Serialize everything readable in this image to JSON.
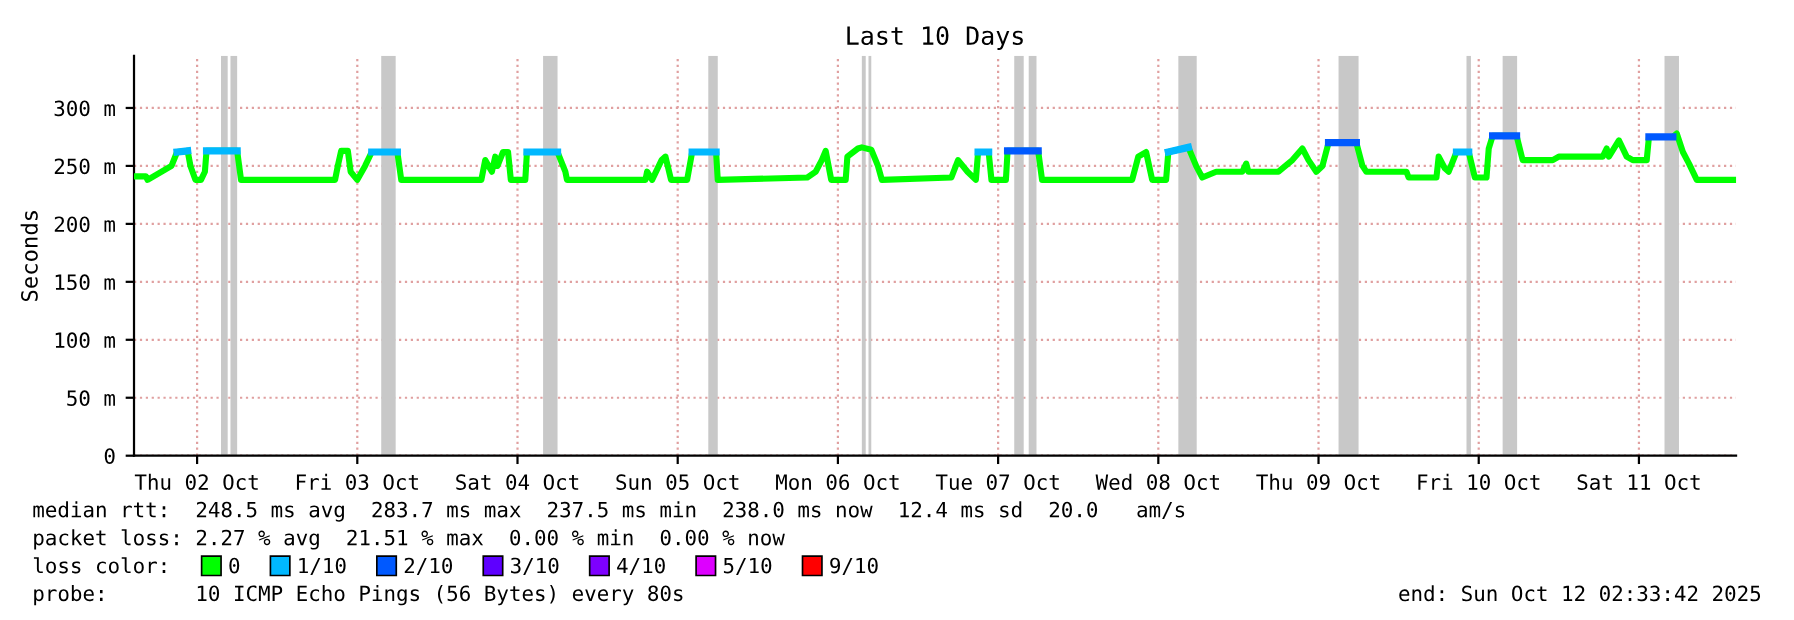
{
  "chart_data": {
    "type": "line",
    "title": "Last 10 Days",
    "ylabel": "Seconds",
    "x": [
      "2025-10-02T02:33",
      "2025-10-02T04:20",
      "2025-10-02T04:35",
      "2025-10-02T08:10",
      "2025-10-02T09:00",
      "2025-10-02T10:35",
      "2025-10-02T11:00",
      "2025-10-02T11:45",
      "2025-10-02T12:35",
      "2025-10-02T13:10",
      "2025-10-02T13:25",
      "2025-10-02T18:00",
      "2025-10-02T18:35",
      "2025-10-03T08:40",
      "2025-10-03T09:05",
      "2025-10-03T09:35",
      "2025-10-03T10:35",
      "2025-10-03T11:00",
      "2025-10-03T12:00",
      "2025-10-03T13:10",
      "2025-10-03T14:10",
      "2025-10-03T18:00",
      "2025-10-03T18:35",
      "2025-10-04T06:35",
      "2025-10-04T07:10",
      "2025-10-04T08:10",
      "2025-10-04T08:40",
      "2025-10-04T09:00",
      "2025-10-04T09:50",
      "2025-10-04T10:35",
      "2025-10-04T11:00",
      "2025-10-04T13:10",
      "2025-10-04T13:25",
      "2025-10-04T18:00",
      "2025-10-04T19:10",
      "2025-10-04T19:25",
      "2025-10-05T07:10",
      "2025-10-05T07:25",
      "2025-10-05T08:10",
      "2025-10-05T09:35",
      "2025-10-05T10:10",
      "2025-10-05T11:00",
      "2025-10-05T13:25",
      "2025-10-05T14:10",
      "2025-10-05T17:45",
      "2025-10-05T18:00",
      "2025-10-06T07:25",
      "2025-10-06T08:40",
      "2025-10-06T09:35",
      "2025-10-06T10:10",
      "2025-10-06T11:00",
      "2025-10-06T13:10",
      "2025-10-06T13:25",
      "2025-10-06T15:00",
      "2025-10-06T15:35",
      "2025-10-06T17:00",
      "2025-10-06T18:00",
      "2025-10-06T18:35",
      "2025-10-07T05:00",
      "2025-10-07T06:00",
      "2025-10-07T07:25",
      "2025-10-07T08:40",
      "2025-10-07T09:00",
      "2025-10-07T10:35",
      "2025-10-07T11:00",
      "2025-10-07T13:10",
      "2025-10-07T13:25",
      "2025-10-07T18:00",
      "2025-10-07T18:35",
      "2025-10-08T08:05",
      "2025-10-08T09:00",
      "2025-10-08T10:10",
      "2025-10-08T11:05",
      "2025-10-08T13:10",
      "2025-10-08T13:30",
      "2025-10-08T16:30",
      "2025-10-08T17:40",
      "2025-10-08T18:35",
      "2025-10-08T20:40",
      "2025-10-09T00:35",
      "2025-10-09T01:10",
      "2025-10-09T01:30",
      "2025-10-09T06:00",
      "2025-10-09T08:05",
      "2025-10-09T09:35",
      "2025-10-09T10:30",
      "2025-10-09T11:40",
      "2025-10-09T12:35",
      "2025-10-09T13:30",
      "2025-10-09T17:40",
      "2025-10-09T18:35",
      "2025-10-09T19:10",
      "2025-10-10T01:10",
      "2025-10-10T01:30",
      "2025-10-10T05:40",
      "2025-10-10T06:00",
      "2025-10-10T06:55",
      "2025-10-10T07:30",
      "2025-10-10T08:40",
      "2025-10-10T10:30",
      "2025-10-10T11:25",
      "2025-10-10T13:10",
      "2025-10-10T13:30",
      "2025-10-10T14:05",
      "2025-10-10T17:40",
      "2025-10-10T18:35",
      "2025-10-10T23:05",
      "2025-10-11T00:00",
      "2025-10-11T06:35",
      "2025-10-11T07:10",
      "2025-10-11T07:30",
      "2025-10-11T09:00",
      "2025-10-11T10:10",
      "2025-10-11T11:05",
      "2025-10-11T13:10",
      "2025-10-11T13:30",
      "2025-10-11T17:05",
      "2025-10-11T17:40",
      "2025-10-11T18:35",
      "2025-10-11T19:30",
      "2025-10-11T20:40",
      "2025-10-12T02:25"
    ],
    "series": [
      {
        "name": "0",
        "color": "#00ff00",
        "values": [
          241,
          241,
          238,
          250,
          262,
          263,
          250,
          238,
          238,
          245,
          263,
          263,
          238,
          238,
          250,
          263,
          263,
          245,
          238,
          250,
          262,
          262,
          238,
          238,
          255,
          245,
          258,
          250,
          262,
          262,
          238,
          238,
          262,
          262,
          245,
          238,
          238,
          245,
          238,
          255,
          258,
          238,
          238,
          262,
          262,
          238,
          240,
          245,
          255,
          263,
          238,
          238,
          258,
          265,
          266,
          264,
          250,
          238,
          240,
          255,
          245,
          238,
          262,
          262,
          238,
          238,
          263,
          263,
          238,
          238,
          258,
          262,
          238,
          238,
          262,
          266,
          250,
          240,
          245,
          245,
          252,
          245,
          245,
          255,
          265,
          255,
          245,
          250,
          270,
          270,
          250,
          245,
          245,
          240,
          240,
          258,
          248,
          245,
          262,
          262,
          240,
          240,
          265,
          276,
          276,
          255,
          255,
          258,
          258,
          265,
          258,
          272,
          258,
          255,
          255,
          275,
          275,
          278,
          262,
          252,
          238,
          238
        ]
      },
      {
        "name": "1/10",
        "color": "#00b8ff",
        "x": [
          "2025-10-02T09:00",
          "2025-10-02T10:35",
          "2025-10-02T12:00",
          "2025-10-02T13:25",
          "2025-10-02T18:00",
          "2025-10-03T03:00",
          "2025-10-03T14:10",
          "2025-10-03T18:00",
          "2025-10-04T03:00",
          "2025-10-04T13:25",
          "2025-10-04T18:00",
          "2025-10-05T03:00",
          "2025-10-05T14:10",
          "2025-10-05T17:45",
          "2025-10-06T12:00",
          "2025-10-07T09:00",
          "2025-10-07T10:35",
          "2025-10-08T00:00",
          "2025-10-08T13:30",
          "2025-10-08T16:30",
          "2025-10-09T12:00",
          "2025-10-10T08:40",
          "2025-10-10T10:30"
        ],
        "values": [
          262,
          263,
          null,
          263,
          263,
          null,
          262,
          262,
          null,
          262,
          262,
          null,
          262,
          262,
          null,
          262,
          262,
          null,
          262,
          266,
          null,
          262,
          262
        ]
      },
      {
        "name": "2/10",
        "color": "#0059ff",
        "x": [
          "2025-10-07T13:25",
          "2025-10-07T18:00",
          "2025-10-08T12:00",
          "2025-10-09T13:30",
          "2025-10-09T17:40",
          "2025-10-10T03:00",
          "2025-10-10T14:05",
          "2025-10-10T17:40",
          "2025-10-11T03:00",
          "2025-10-11T13:30",
          "2025-10-11T17:05"
        ],
        "values": [
          263,
          263,
          null,
          270,
          270,
          null,
          276,
          276,
          null,
          275,
          275
        ]
      },
      {
        "name": "3/10",
        "color": "#5e00ff",
        "values": [
          null,
          null,
          null,
          null,
          null,
          null,
          null,
          null,
          null,
          null,
          null,
          null,
          null,
          null,
          null,
          null,
          null,
          null,
          null,
          null,
          null,
          null,
          null,
          null,
          null,
          null,
          null,
          null,
          null,
          null,
          null,
          null,
          null,
          null,
          null,
          null,
          null,
          null,
          null,
          null,
          null,
          null,
          null,
          null,
          null,
          null,
          null,
          null,
          null,
          null,
          null,
          null,
          null,
          null,
          null,
          null,
          null,
          null,
          null,
          null,
          null,
          null,
          null,
          null,
          null,
          null,
          null,
          null,
          null,
          null,
          null,
          null,
          null,
          null,
          null,
          null,
          null,
          null,
          null,
          null,
          null,
          null,
          null,
          null,
          null,
          null,
          null,
          null,
          null,
          null,
          null,
          null,
          null,
          null,
          null,
          null,
          null,
          null,
          null,
          null,
          null,
          null,
          null,
          null,
          null,
          null,
          null,
          null,
          null,
          null,
          null,
          null,
          null,
          null,
          null,
          null,
          null,
          null,
          null,
          null,
          null,
          null
        ]
      },
      {
        "name": "4/10",
        "color": "#7e00ff",
        "values": [
          null,
          null,
          null,
          null,
          null,
          null,
          null,
          null,
          null,
          null,
          null,
          null,
          null,
          null,
          null,
          null,
          null,
          null,
          null,
          null,
          null,
          null,
          null,
          null,
          null,
          null,
          null,
          null,
          null,
          null,
          null,
          null,
          null,
          null,
          null,
          null,
          null,
          null,
          null,
          null,
          null,
          null,
          null,
          null,
          null,
          null,
          null,
          null,
          null,
          null,
          null,
          null,
          null,
          null,
          null,
          null,
          null,
          null,
          null,
          null,
          null,
          null,
          null,
          null,
          null,
          null,
          null,
          null,
          null,
          null,
          null,
          null,
          null,
          null,
          null,
          null,
          null,
          null,
          null,
          null,
          null,
          null,
          null,
          null,
          null,
          null,
          null,
          null,
          null,
          null,
          null,
          null,
          null,
          null,
          null,
          null,
          null,
          null,
          null,
          null,
          null,
          null,
          null,
          null,
          null,
          null,
          null,
          null,
          null,
          null,
          null,
          null,
          null,
          null,
          null,
          null,
          null,
          null,
          null,
          null,
          null,
          null
        ]
      },
      {
        "name": "5/10",
        "color": "#dd00ff",
        "values": [
          null,
          null,
          null,
          null,
          null,
          null,
          null,
          null,
          null,
          null,
          null,
          null,
          null,
          null,
          null,
          null,
          null,
          null,
          null,
          null,
          null,
          null,
          null,
          null,
          null,
          null,
          null,
          null,
          null,
          null,
          null,
          null,
          null,
          null,
          null,
          null,
          null,
          null,
          null,
          null,
          null,
          null,
          null,
          null,
          null,
          null,
          null,
          null,
          null,
          null,
          null,
          null,
          null,
          null,
          null,
          null,
          null,
          null,
          null,
          null,
          null,
          null,
          null,
          null,
          null,
          null,
          null,
          null,
          null,
          null,
          null,
          null,
          null,
          null,
          null,
          null,
          null,
          null,
          null,
          null,
          null,
          null,
          null,
          null,
          null,
          null,
          null,
          null,
          null,
          null,
          null,
          null,
          null,
          null,
          null,
          null,
          null,
          null,
          null,
          null,
          null,
          null,
          null,
          null,
          null,
          null,
          null,
          null,
          null,
          null,
          null,
          null,
          null,
          null,
          null,
          null,
          null,
          null,
          null,
          null,
          null,
          null
        ]
      },
      {
        "name": "9/10",
        "color": "#ff0000",
        "values": [
          null,
          null,
          null,
          null,
          null,
          null,
          null,
          null,
          null,
          null,
          null,
          null,
          null,
          null,
          null,
          null,
          null,
          null,
          null,
          null,
          null,
          null,
          null,
          null,
          null,
          null,
          null,
          null,
          null,
          null,
          null,
          null,
          null,
          null,
          null,
          null,
          null,
          null,
          null,
          null,
          null,
          null,
          null,
          null,
          null,
          null,
          null,
          null,
          null,
          null,
          null,
          null,
          null,
          null,
          null,
          null,
          null,
          null,
          null,
          null,
          null,
          null,
          null,
          null,
          null,
          null,
          null,
          null,
          null,
          null,
          null,
          null,
          null,
          null,
          null,
          null,
          null,
          null,
          null,
          null,
          null,
          null,
          null,
          null,
          null,
          null,
          null,
          null,
          null,
          null,
          null,
          null,
          null,
          null,
          null,
          null,
          null,
          null,
          null,
          null,
          null,
          null,
          null,
          null,
          null,
          null,
          null,
          null,
          null,
          null,
          null,
          null,
          null,
          null,
          null,
          null,
          null,
          null,
          null,
          null,
          null,
          null
        ]
      }
    ],
    "bands": [
      {
        "axis": "x",
        "from": "2025-10-02T15:35",
        "to": "2025-10-02T16:35",
        "color": "#c8c8c8"
      },
      {
        "axis": "x",
        "from": "2025-10-02T17:00",
        "to": "2025-10-02T18:00",
        "color": "#c8c8c8"
      },
      {
        "axis": "x",
        "from": "2025-10-03T15:35",
        "to": "2025-10-03T17:45",
        "color": "#c8c8c8"
      },
      {
        "axis": "x",
        "from": "2025-10-04T15:50",
        "to": "2025-10-04T18:00",
        "color": "#c8c8c8"
      },
      {
        "axis": "x",
        "from": "2025-10-05T16:35",
        "to": "2025-10-05T18:00",
        "color": "#c8c8c8"
      },
      {
        "axis": "x",
        "from": "2025-10-06T15:35",
        "to": "2025-10-06T16:10",
        "color": "#c8c8c8"
      },
      {
        "axis": "x",
        "from": "2025-10-06T16:35",
        "to": "2025-10-06T17:00",
        "color": "#c8c8c8"
      },
      {
        "axis": "x",
        "from": "2025-10-07T14:25",
        "to": "2025-10-07T15:50",
        "color": "#c8c8c8"
      },
      {
        "axis": "x",
        "from": "2025-10-07T16:35",
        "to": "2025-10-07T17:45",
        "color": "#c8c8c8"
      },
      {
        "axis": "x",
        "from": "2025-10-08T15:00",
        "to": "2025-10-08T17:45",
        "color": "#c8c8c8"
      },
      {
        "axis": "x",
        "from": "2025-10-09T15:00",
        "to": "2025-10-09T18:00",
        "color": "#c8c8c8"
      },
      {
        "axis": "x",
        "from": "2025-10-10T10:10",
        "to": "2025-10-10T10:50",
        "color": "#c8c8c8"
      },
      {
        "axis": "x",
        "from": "2025-10-10T15:35",
        "to": "2025-10-10T17:45",
        "color": "#c8c8c8"
      },
      {
        "axis": "x",
        "from": "2025-10-11T15:50",
        "to": "2025-10-11T18:00",
        "color": "#c8c8c8"
      }
    ],
    "xlim": [
      "2025-10-02T02:33",
      "2025-10-12T02:33"
    ],
    "xticks": [
      {
        "value": "2025-10-02T12:00",
        "label": "Thu 02 Oct"
      },
      {
        "value": "2025-10-03T12:00",
        "label": "Fri 03 Oct"
      },
      {
        "value": "2025-10-04T12:00",
        "label": "Sat 04 Oct"
      },
      {
        "value": "2025-10-05T12:00",
        "label": "Sun 05 Oct"
      },
      {
        "value": "2025-10-06T12:00",
        "label": "Mon 06 Oct"
      },
      {
        "value": "2025-10-07T12:00",
        "label": "Tue 07 Oct"
      },
      {
        "value": "2025-10-08T12:00",
        "label": "Wed 08 Oct"
      },
      {
        "value": "2025-10-09T12:00",
        "label": "Thu 09 Oct"
      },
      {
        "value": "2025-10-10T12:00",
        "label": "Fri 10 Oct"
      },
      {
        "value": "2025-10-11T12:00",
        "label": "Sat 11 Oct"
      }
    ],
    "ylim": [
      0,
      345
    ],
    "yticks": [
      0,
      {
        "value": 50,
        "label": "50 m"
      },
      {
        "value": 100,
        "label": "100 m"
      },
      {
        "value": 150,
        "label": "150 m"
      },
      {
        "value": 200,
        "label": "200 m"
      },
      {
        "value": 250,
        "label": "250 m"
      },
      {
        "value": 300,
        "label": "300 m"
      }
    ],
    "grid": true,
    "legend": "bottom",
    "legend_title": "loss color:",
    "marker": "none",
    "line_style": "solid",
    "annotations": [
      "median rtt:  248.5 ms avg  283.7 ms max  237.5 ms min  238.0 ms now  12.4 ms sd  20.0   am/s",
      "packet loss: 2.27 % avg  21.51 % max  0.00 % min  0.00 % now",
      "probe:       10 ICMP Echo Pings (56 Bytes) every 80s",
      "end: Sun Oct 12 02:33:42 2025"
    ]
  }
}
